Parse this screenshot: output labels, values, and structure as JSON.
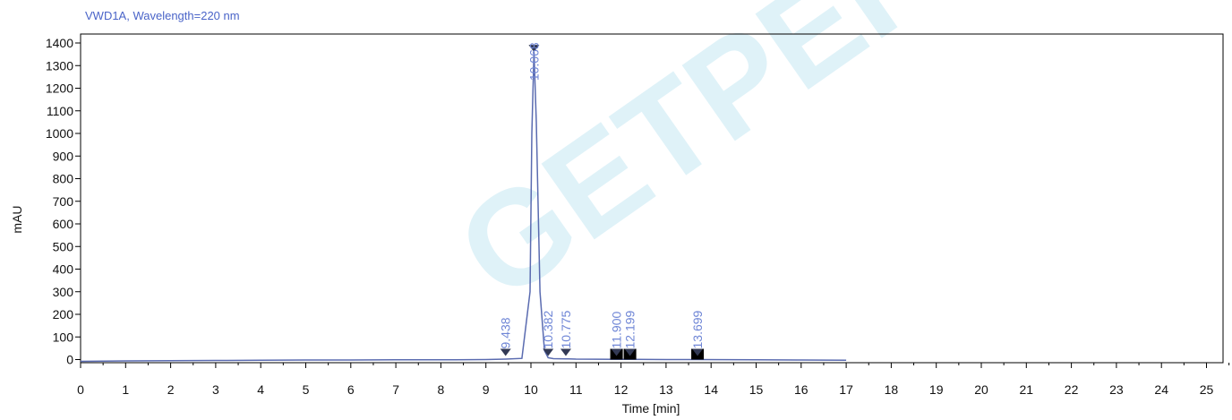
{
  "chart_data": {
    "type": "line",
    "title": "VWD1A, Wavelength=220  nm",
    "xlabel": "Time  [min]",
    "ylabel": "mAU",
    "xlim": [
      0,
      25.5
    ],
    "ylim": [
      -15,
      1420
    ],
    "xticks": [
      0,
      1,
      2,
      3,
      4,
      5,
      6,
      7,
      8,
      9,
      10,
      11,
      12,
      13,
      14,
      15,
      16,
      17,
      18,
      19,
      20,
      21,
      22,
      23,
      24,
      25
    ],
    "yticks": [
      0,
      100,
      200,
      300,
      400,
      500,
      600,
      700,
      800,
      900,
      1000,
      1100,
      1200,
      1300,
      1400
    ],
    "grid": false,
    "watermark": "GETPEPTIDE",
    "colors": {
      "trace": "#5a6bb0",
      "peak_label": "#6f86d6",
      "title": "#4a64c8",
      "watermark": "#dff2f8"
    },
    "series": [
      {
        "x": [
          0,
          1,
          2,
          3,
          4,
          5,
          6,
          7,
          8,
          9,
          9.438,
          9.8,
          9.98,
          10.02,
          10.068,
          10.12,
          10.2,
          10.3,
          10.382,
          10.5,
          10.775,
          11,
          11.9,
          12.199,
          13,
          13.699,
          15,
          16,
          17
        ],
        "y": [
          -8,
          -6,
          -5,
          -4,
          -3,
          -2,
          -2,
          -1,
          -1,
          0,
          2,
          5,
          300,
          1000,
          1360,
          1050,
          300,
          40,
          8,
          4,
          3,
          2,
          1,
          1,
          0,
          0,
          -1,
          -2,
          -3
        ]
      }
    ],
    "peaks": [
      {
        "rt": "9.438",
        "x": 9.438,
        "y": 2
      },
      {
        "rt": "10.068",
        "x": 10.068,
        "y": 1360
      },
      {
        "rt": "10.382",
        "x": 10.382,
        "y": 8
      },
      {
        "rt": "10.775",
        "x": 10.775,
        "y": 3
      },
      {
        "rt": "11.900",
        "x": 11.9,
        "y": 1
      },
      {
        "rt": "12.199",
        "x": 12.199,
        "y": 1
      },
      {
        "rt": "13.699",
        "x": 13.699,
        "y": 0
      }
    ],
    "blocks": [
      11.9,
      12.199,
      13.699
    ]
  }
}
